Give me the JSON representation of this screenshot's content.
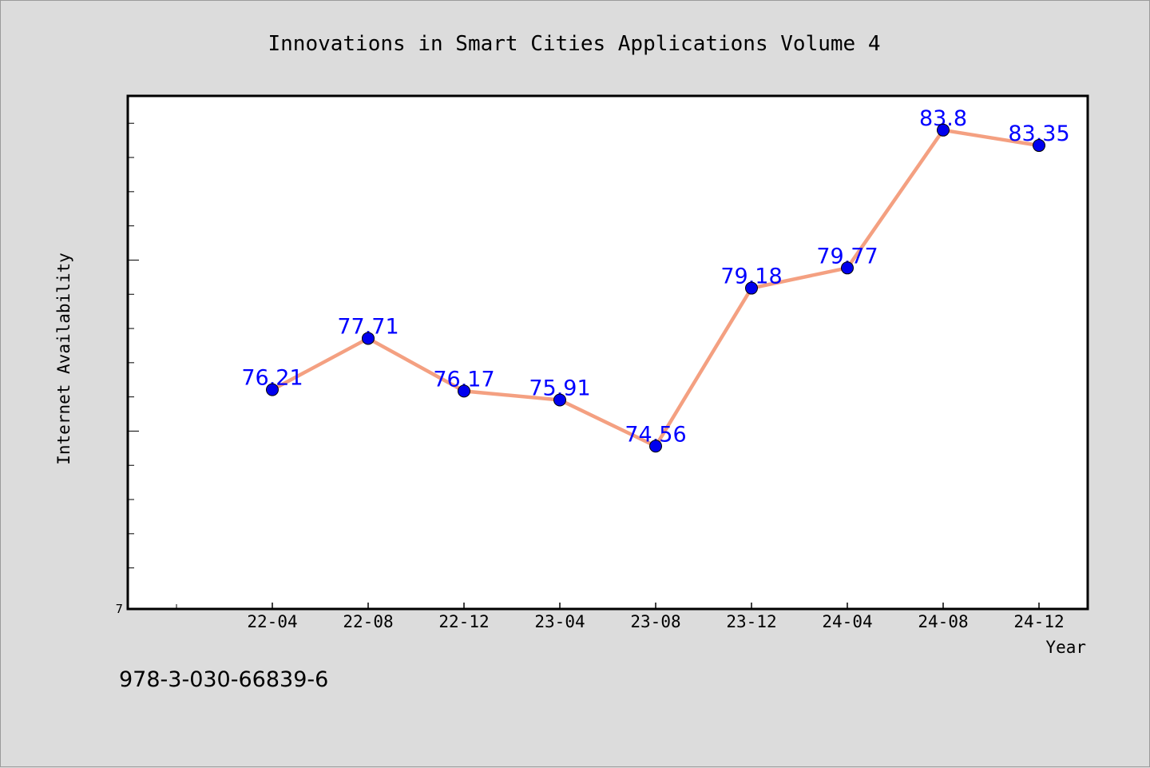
{
  "chart_data": {
    "type": "line",
    "title": "Innovations in Smart Cities Applications Volume 4",
    "xlabel": "Year",
    "ylabel": "Internet Availability",
    "categories": [
      "22-04",
      "22-08",
      "22-12",
      "23-04",
      "23-08",
      "23-12",
      "24-04",
      "24-08",
      "24-12"
    ],
    "series": [
      {
        "values": [
          76.21,
          77.71,
          76.17,
          75.91,
          74.56,
          79.18,
          79.77,
          83.8,
          83.35
        ],
        "labels": [
          "76.21",
          "77.71",
          "76.17",
          "75.91",
          "74.56",
          "79.18",
          "79.77",
          "83.8",
          "83.35"
        ]
      }
    ],
    "y_tick_labels": [
      "7"
    ],
    "ylim": [
      69.8,
      84.8
    ],
    "y_minor_step": 1,
    "grid": false,
    "line_color": "#f4a081",
    "marker_color": "#0000ee",
    "label_color": "#0000ff"
  },
  "footer": {
    "isbn": "978-3-030-66839-6"
  }
}
